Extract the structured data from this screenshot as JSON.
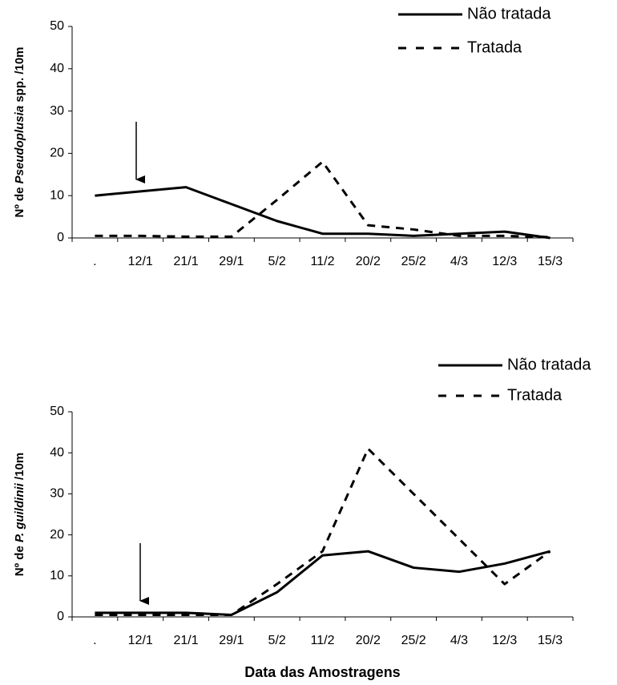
{
  "chart_data": [
    {
      "type": "line",
      "ylabel_parts": [
        "Nº de ",
        "Pseudoplusia",
        " spp. /10m"
      ],
      "categories": [
        ".",
        "12/1",
        "21/1",
        "29/1",
        "5/2",
        "11/2",
        "20/2",
        "25/2",
        "4/3",
        "12/3",
        "15/3"
      ],
      "series": [
        {
          "name": "Não tratada",
          "color": "#000000",
          "dash": "solid",
          "values": [
            10,
            11,
            12,
            8,
            4,
            1,
            1,
            0.5,
            1,
            1.5,
            0
          ]
        },
        {
          "name": "Tratada",
          "color": "#000000",
          "dash": "dashed",
          "values": [
            0.5,
            0.5,
            0.3,
            0.3,
            9,
            18,
            3,
            2,
            0.5,
            0.5,
            0.2
          ]
        }
      ],
      "ylim": [
        0,
        50
      ],
      "yticks": [
        0,
        10,
        20,
        30,
        40,
        50
      ],
      "grid": false,
      "legend": "top-right"
    },
    {
      "type": "line",
      "ylabel_parts": [
        "Nº de ",
        "P. guildinii",
        " /10m"
      ],
      "xlabel": "Data das Amostragens",
      "categories": [
        ".",
        "12/1",
        "21/1",
        "29/1",
        "5/2",
        "11/2",
        "20/2",
        "25/2",
        "4/3",
        "12/3",
        "15/3"
      ],
      "series": [
        {
          "name": "Não tratada",
          "color": "#000000",
          "dash": "solid",
          "values": [
            1,
            1,
            1,
            0.5,
            6,
            15,
            16,
            12,
            11,
            13,
            16
          ]
        },
        {
          "name": "Tratada",
          "color": "#000000",
          "dash": "dashed",
          "values": [
            0.5,
            0.5,
            0.5,
            0.5,
            8,
            16,
            41,
            30,
            19,
            8,
            16
          ]
        }
      ],
      "ylim": [
        0,
        50
      ],
      "yticks": [
        0,
        10,
        20,
        30,
        40,
        50
      ],
      "grid": false,
      "legend": "top-right"
    }
  ]
}
